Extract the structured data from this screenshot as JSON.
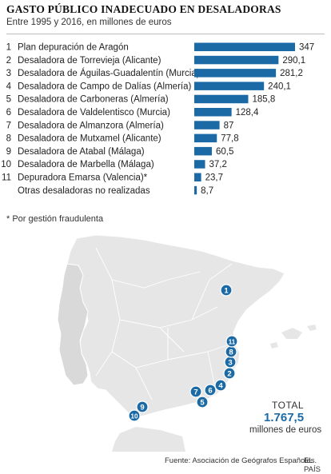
{
  "title": "GASTO PÚBLICO INADECUADO EN DESALADORAS",
  "subtitle": "Entre 1995 y 2016, en millones de euros",
  "footnote": "* Por gestión fraudulenta",
  "source": "Fuente: Asociación de Geógrafos Españoles.",
  "brand": "EL PAÍS",
  "total": {
    "label": "TOTAL",
    "value": "1.767,5",
    "unit": "millones de euros"
  },
  "colors": {
    "bar": "#1b6aa5",
    "marker": "#1b6aa5",
    "land": "#e6e6e6",
    "border": "#ffffff"
  },
  "chart_data": {
    "type": "bar",
    "orientation": "horizontal",
    "title": "GASTO PÚBLICO INADECUADO EN DESALADORAS",
    "subtitle": "Entre 1995 y 2016, en millones de euros",
    "categories": [
      "Plan depuración de Aragón",
      "Desaladora de Torrevieja (Alicante)",
      "Desaladora de Águilas-Guadalentín (Murcia)",
      "Desaladora de Campo de Dalías (Almería)",
      "Desaladora de Carboneras (Almería)",
      "Desaladora de Valdelentisco (Murcia)",
      "Desaladora de Almanzora (Almería)",
      "Desaladora de Mutxamel (Alicante)",
      "Desaladora de Atabal (Málaga)",
      "Desaladora de Marbella (Málaga)",
      "Depuradora Emarsa (Valencia)*",
      "Otras desaladoras no realizadas"
    ],
    "numbers": [
      "1",
      "2",
      "3",
      "4",
      "5",
      "6",
      "7",
      "8",
      "9",
      "10",
      "11",
      ""
    ],
    "values": [
      347,
      290.1,
      281.2,
      240.1,
      185.8,
      128.4,
      87,
      77.8,
      60.5,
      37.2,
      23.7,
      8.7
    ],
    "value_labels": [
      "347",
      "290,1",
      "281,2",
      "240,1",
      "185,8",
      "128,4",
      "87",
      "77,8",
      "60,5",
      "37,2",
      "23,7",
      "8,7"
    ],
    "xlim": [
      0,
      347
    ],
    "grid": false
  },
  "map": {
    "markers": [
      "1",
      "2",
      "3",
      "4",
      "5",
      "6",
      "7",
      "8",
      "9",
      "10",
      "11"
    ]
  }
}
